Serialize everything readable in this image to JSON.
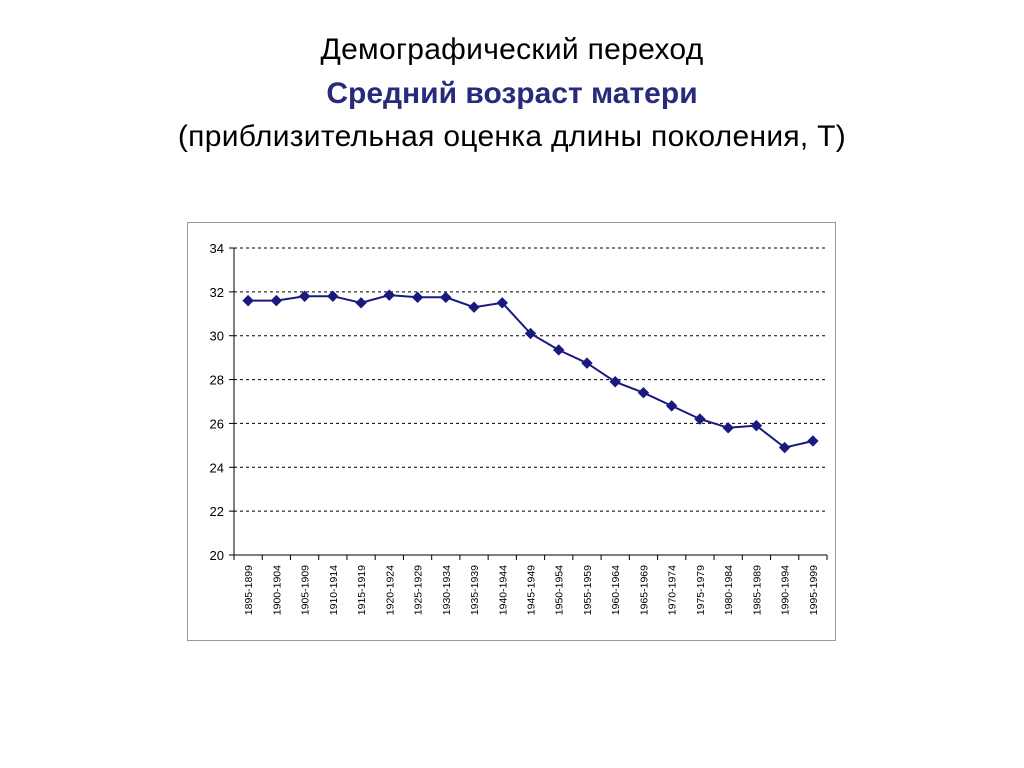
{
  "titles": {
    "line1": "Демографический переход",
    "line2": "Средний возраст матери",
    "line3": "(приблизительная оценка длины поколения, T)"
  },
  "colors": {
    "title_accent": "#2a2a7a",
    "series": "#1a1a7e",
    "grid": "#000000",
    "frame": "#9a9a9a"
  },
  "chart_data": {
    "type": "line",
    "title": "",
    "xlabel": "",
    "ylabel": "",
    "ylim": [
      20,
      34
    ],
    "yticks": [
      20,
      22,
      24,
      26,
      28,
      30,
      32,
      34
    ],
    "grid": "horizontal-dashed",
    "legend": "none",
    "marker": "diamond",
    "categories": [
      "1895-1899",
      "1900-1904",
      "1905-1909",
      "1910-1914",
      "1915-1919",
      "1920-1924",
      "1925-1929",
      "1930-1934",
      "1935-1939",
      "1940-1944",
      "1945-1949",
      "1950-1954",
      "1955-1959",
      "1960-1964",
      "1965-1969",
      "1970-1974",
      "1975-1979",
      "1980-1984",
      "1985-1989",
      "1990-1994",
      "1995-1999"
    ],
    "series": [
      {
        "values": [
          31.6,
          31.6,
          31.8,
          31.8,
          31.5,
          31.85,
          31.75,
          31.75,
          31.3,
          31.5,
          30.1,
          29.35,
          28.75,
          27.9,
          27.4,
          26.8,
          26.2,
          25.8,
          25.9,
          24.9,
          25.2
        ]
      }
    ]
  }
}
